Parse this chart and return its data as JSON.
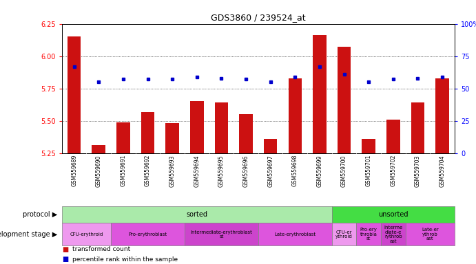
{
  "title": "GDS3860 / 239524_at",
  "samples": [
    "GSM559689",
    "GSM559690",
    "GSM559691",
    "GSM559692",
    "GSM559693",
    "GSM559694",
    "GSM559695",
    "GSM559696",
    "GSM559697",
    "GSM559698",
    "GSM559699",
    "GSM559700",
    "GSM559701",
    "GSM559702",
    "GSM559703",
    "GSM559704"
  ],
  "bar_values": [
    6.15,
    5.31,
    5.49,
    5.57,
    5.48,
    5.65,
    5.64,
    5.55,
    5.36,
    5.83,
    6.16,
    6.07,
    5.36,
    5.51,
    5.64,
    5.83
  ],
  "dot_values": [
    5.92,
    5.8,
    5.82,
    5.82,
    5.82,
    5.84,
    5.83,
    5.82,
    5.8,
    5.84,
    5.92,
    5.86,
    5.8,
    5.82,
    5.83,
    5.84
  ],
  "ylim_left": [
    5.25,
    6.25
  ],
  "ylim_right": [
    0,
    100
  ],
  "yticks_left": [
    5.25,
    5.5,
    5.75,
    6.0,
    6.25
  ],
  "yticks_right": [
    0,
    25,
    50,
    75,
    100
  ],
  "bar_color": "#cc1111",
  "dot_color": "#0000cc",
  "background_color": "#ffffff",
  "bar_bottom": 5.25,
  "grid_lines": [
    5.5,
    5.75,
    6.0
  ],
  "protocol_groups": [
    {
      "label": "sorted",
      "start": 0,
      "end": 11,
      "color": "#aaeaaa"
    },
    {
      "label": "unsorted",
      "start": 11,
      "end": 16,
      "color": "#44dd44"
    }
  ],
  "dev_stage_groups": [
    {
      "label": "CFU-erythroid",
      "start": 0,
      "end": 2,
      "color": "#ee99ee"
    },
    {
      "label": "Pro-erythroblast",
      "start": 2,
      "end": 5,
      "color": "#dd55dd"
    },
    {
      "label": "Intermediate-erythroblast\nst",
      "start": 5,
      "end": 8,
      "color": "#cc44cc"
    },
    {
      "label": "Late-erythroblast",
      "start": 8,
      "end": 11,
      "color": "#dd55dd"
    },
    {
      "label": "CFU-er\nythroid",
      "start": 11,
      "end": 12,
      "color": "#ee99ee"
    },
    {
      "label": "Pro-ery\nthrobla\nst",
      "start": 12,
      "end": 13,
      "color": "#dd55dd"
    },
    {
      "label": "Interme\ndiate-e\nrythrob\nast",
      "start": 13,
      "end": 14,
      "color": "#cc44cc"
    },
    {
      "label": "Late-er\nythrob\nast",
      "start": 14,
      "end": 16,
      "color": "#dd55dd"
    }
  ],
  "sample_label_bg": "#cccccc",
  "legend_items": [
    {
      "label": "transformed count",
      "color": "#cc1111"
    },
    {
      "label": "percentile rank within the sample",
      "color": "#0000cc"
    }
  ],
  "protocol_label": "protocol",
  "devstage_label": "development stage"
}
